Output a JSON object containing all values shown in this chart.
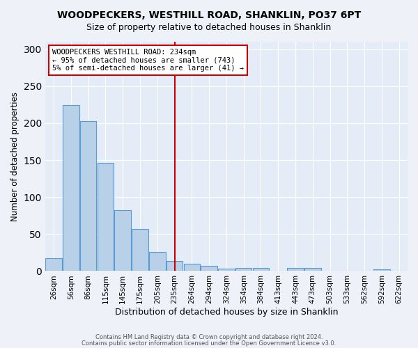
{
  "title": "WOODPECKERS, WESTHILL ROAD, SHANKLIN, PO37 6PT",
  "subtitle": "Size of property relative to detached houses in Shanklin",
  "xlabel": "Distribution of detached houses by size in Shanklin",
  "ylabel": "Number of detached properties",
  "bin_labels": [
    "26sqm",
    "56sqm",
    "86sqm",
    "115sqm",
    "145sqm",
    "175sqm",
    "205sqm",
    "235sqm",
    "264sqm",
    "294sqm",
    "324sqm",
    "354sqm",
    "384sqm",
    "413sqm",
    "443sqm",
    "473sqm",
    "503sqm",
    "533sqm",
    "562sqm",
    "592sqm",
    "622sqm"
  ],
  "bar_heights": [
    17,
    224,
    203,
    146,
    82,
    57,
    26,
    14,
    10,
    7,
    3,
    4,
    4,
    0,
    4,
    4,
    0,
    0,
    0,
    2,
    0
  ],
  "bar_color": "#b8d0e8",
  "bar_edgecolor": "#5b9bd5",
  "vline_x": 7,
  "vline_color": "#cc0000",
  "annotation_line1": "WOODPECKERS WESTHILL ROAD: 234sqm",
  "annotation_line2": "← 95% of detached houses are smaller (743)",
  "annotation_line3": "5% of semi-detached houses are larger (41) →",
  "ylim": [
    0,
    310
  ],
  "yticks": [
    0,
    50,
    100,
    150,
    200,
    250,
    300
  ],
  "footer1": "Contains HM Land Registry data © Crown copyright and database right 2024.",
  "footer2": "Contains public sector information licensed under the Open Government Licence v3.0.",
  "bg_color": "#eef2f8",
  "plot_bg_color": "#e4ecf7"
}
